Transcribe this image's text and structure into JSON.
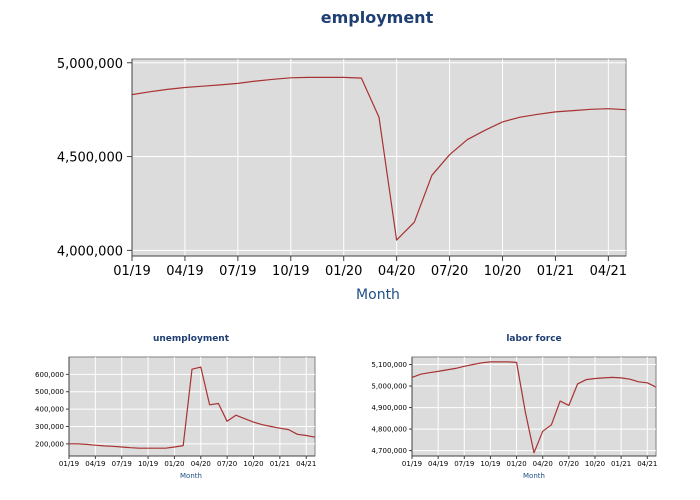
{
  "chart_data": [
    {
      "type": "line",
      "title": "employment",
      "xlabel": "Month",
      "ylabel": "",
      "x": [
        "01/19",
        "02/19",
        "03/19",
        "04/19",
        "05/19",
        "06/19",
        "07/19",
        "08/19",
        "09/19",
        "10/19",
        "11/19",
        "12/19",
        "01/20",
        "02/20",
        "03/20",
        "04/20",
        "05/20",
        "06/20",
        "07/20",
        "08/20",
        "09/20",
        "10/20",
        "11/20",
        "12/20",
        "01/21",
        "02/21",
        "03/21",
        "04/21",
        "05/21"
      ],
      "xticks": [
        "01/19",
        "04/19",
        "07/19",
        "10/19",
        "01/20",
        "04/20",
        "07/20",
        "10/20",
        "01/21",
        "04/21"
      ],
      "yticks": [
        4000000,
        4500000,
        5000000
      ],
      "ytick_labels": [
        "4,000,000",
        "4,500,000",
        "5,000,000"
      ],
      "ylim": [
        3970000,
        5020000
      ],
      "grid": true,
      "color": "#a83232",
      "values": [
        4830000,
        4845000,
        4858000,
        4868000,
        4875000,
        4882000,
        4890000,
        4902000,
        4912000,
        4920000,
        4922000,
        4922000,
        4922000,
        4918000,
        4710000,
        4055000,
        4150000,
        4400000,
        4510000,
        4590000,
        4640000,
        4685000,
        4710000,
        4725000,
        4738000,
        4745000,
        4752000,
        4755000,
        4750000
      ]
    },
    {
      "type": "line",
      "title": "unemployment",
      "xlabel": "Month",
      "ylabel": "",
      "x": [
        "01/19",
        "02/19",
        "03/19",
        "04/19",
        "05/19",
        "06/19",
        "07/19",
        "08/19",
        "09/19",
        "10/19",
        "11/19",
        "12/19",
        "01/20",
        "02/20",
        "03/20",
        "04/20",
        "05/20",
        "06/20",
        "07/20",
        "08/20",
        "09/20",
        "10/20",
        "11/20",
        "12/20",
        "01/21",
        "02/21",
        "03/21",
        "04/21",
        "05/21"
      ],
      "xticks": [
        "01/19",
        "04/19",
        "07/19",
        "10/19",
        "01/20",
        "04/20",
        "07/20",
        "10/20",
        "01/21",
        "04/21"
      ],
      "yticks": [
        200000,
        300000,
        400000,
        500000,
        600000
      ],
      "ytick_labels": [
        "200,000",
        "300,000",
        "400,000",
        "500,000",
        "600,000"
      ],
      "ylim": [
        130000,
        700000
      ],
      "grid": true,
      "color": "#a83232",
      "values": [
        200000,
        200000,
        197000,
        192000,
        188000,
        186000,
        182000,
        178000,
        175000,
        175000,
        175000,
        175000,
        182000,
        190000,
        630000,
        642000,
        425000,
        432000,
        330000,
        365000,
        345000,
        325000,
        310000,
        300000,
        290000,
        282000,
        255000,
        248000,
        238000
      ]
    },
    {
      "type": "line",
      "title": "labor force",
      "xlabel": "Month",
      "ylabel": "",
      "x": [
        "01/19",
        "02/19",
        "03/19",
        "04/19",
        "05/19",
        "06/19",
        "07/19",
        "08/19",
        "09/19",
        "10/19",
        "11/19",
        "12/19",
        "01/20",
        "02/20",
        "03/20",
        "04/20",
        "05/20",
        "06/20",
        "07/20",
        "08/20",
        "09/20",
        "10/20",
        "11/20",
        "12/20",
        "01/21",
        "02/21",
        "03/21",
        "04/21",
        "05/21"
      ],
      "xticks": [
        "01/19",
        "04/19",
        "07/19",
        "10/19",
        "01/20",
        "04/20",
        "07/20",
        "10/20",
        "01/21",
        "04/21"
      ],
      "yticks": [
        4700000,
        4800000,
        4900000,
        5000000,
        5100000
      ],
      "ytick_labels": [
        "4,700,000",
        "4,800,000",
        "4,900,000",
        "5,000,000",
        "5,100,000"
      ],
      "ylim": [
        4675000,
        5135000
      ],
      "grid": true,
      "color": "#a83232",
      "values": [
        5040000,
        5055000,
        5062000,
        5068000,
        5075000,
        5082000,
        5092000,
        5100000,
        5108000,
        5112000,
        5112000,
        5112000,
        5110000,
        4880000,
        4690000,
        4790000,
        4820000,
        4930000,
        4910000,
        5010000,
        5030000,
        5035000,
        5038000,
        5040000,
        5038000,
        5032000,
        5020000,
        5015000,
        4995000
      ]
    }
  ]
}
